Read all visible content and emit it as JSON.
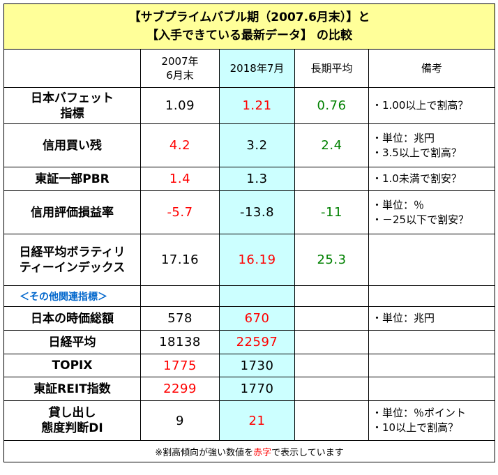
{
  "title": {
    "line1": "【サブプライムバブル期（2007.6月末）】と",
    "line2": "【入手できている最新データ】 の比較"
  },
  "header": {
    "col_2007_line1": "2007年",
    "col_2007_line2": "6月末",
    "col_2018": "2018年7月",
    "col_avg": "長期平均",
    "col_note": "備考"
  },
  "rows": {
    "buffett": {
      "label_line1": "日本バフェット",
      "label_line2": "指標",
      "v2007": "1.09",
      "v2018": "1.21",
      "avg": "0.76",
      "note_line1": "・1.00以上で割高？",
      "note_line2": ""
    },
    "credit": {
      "label_line1": "信用買い残",
      "label_line2": "",
      "v2007": "4.2",
      "v2018": "3.2",
      "avg": "2.4",
      "note_line1": "・単位：兆円",
      "note_line2": "・3.5以上で割高？"
    },
    "pbr": {
      "label_line1": "東証一部PBR",
      "label_line2": "",
      "v2007": "1.4",
      "v2018": "1.3",
      "avg": "",
      "note_line1": "・1.0未満で割安？",
      "note_line2": ""
    },
    "eval": {
      "label_line1": "信用評価損益率",
      "label_line2": "",
      "v2007": "-5.7",
      "v2018": "-13.8",
      "avg": "-11",
      "note_line1": "・単位：％",
      "note_line2": "・－25以下で割安？"
    },
    "vi": {
      "label_line1": "日経平均ボラティリ",
      "label_line2": "ティーインデックス",
      "v2007": "17.16",
      "v2018": "16.19",
      "avg": "25.3",
      "note_line1": "",
      "note_line2": ""
    }
  },
  "section_label": "＜その他関連指標＞",
  "rows2": {
    "mcap": {
      "label_line1": "日本の時価総額",
      "label_line2": "",
      "v2007": "578",
      "v2018": "670",
      "note_line1": "・単位：兆円",
      "note_line2": ""
    },
    "nikkei": {
      "label_line1": "日経平均",
      "label_line2": "",
      "v2007": "18138",
      "v2018": "22597",
      "note_line1": "",
      "note_line2": ""
    },
    "topix": {
      "label_line1": "TOPIX",
      "label_line2": "",
      "v2007": "1775",
      "v2018": "1730",
      "note_line1": "",
      "note_line2": ""
    },
    "reit": {
      "label_line1": "東証REIT指数",
      "label_line2": "",
      "v2007": "2299",
      "v2018": "1770",
      "note_line1": "",
      "note_line2": ""
    },
    "loan": {
      "label_line1": "貸し出し",
      "label_line2": "態度判断DI",
      "v2007": "9",
      "v2018": "21",
      "note_line1": "・単位：％ポイント",
      "note_line2": "・10以上で割高？"
    }
  },
  "footer": {
    "before": "※割高傾向が強い数値を",
    "highlight": "赤字",
    "after": "で表示しています"
  },
  "colors": {
    "title_bg": "#ffff99",
    "highlight_col_bg": "#ccffff",
    "overvalued": "#ff0000",
    "average": "#008000",
    "section_text": "#0066cc"
  }
}
